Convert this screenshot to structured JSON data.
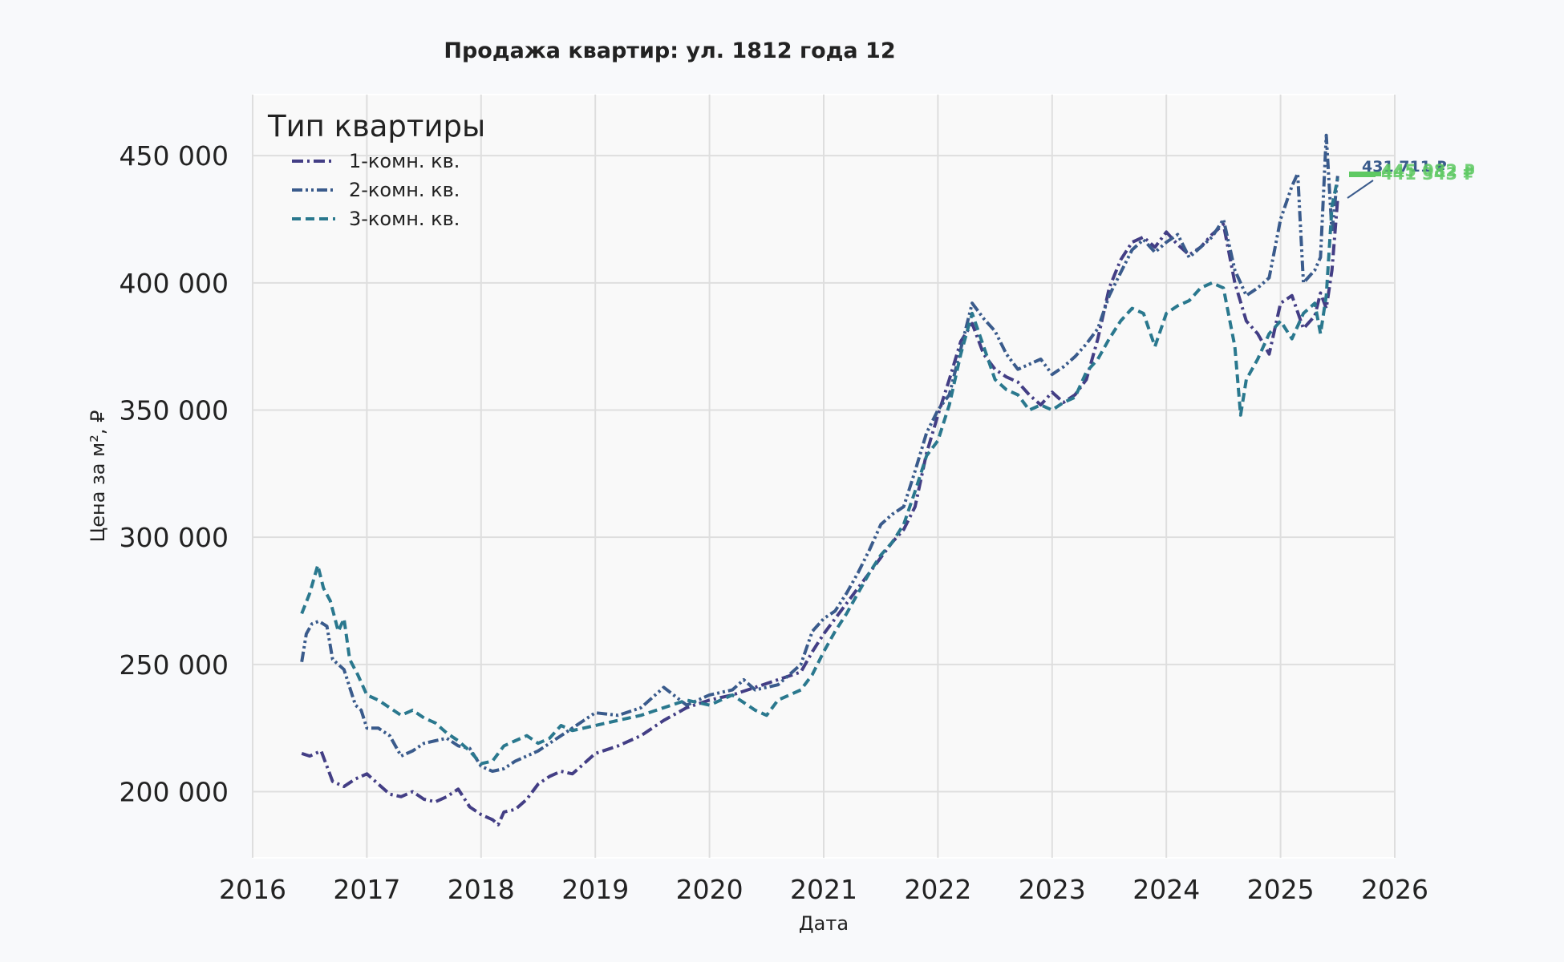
{
  "colors": {
    "background": "#f8f9fb",
    "plot_background": "#f9f9f9",
    "grid": "#dedede",
    "text": "#222222",
    "annotation_green": "#5ec962"
  },
  "chart_data": {
    "type": "line",
    "title": "Продажа квартир: ул. 1812 года 12",
    "xlabel": "Дата",
    "ylabel": "Цена за м², ₽",
    "xlim": [
      2016.0,
      2026.0
    ],
    "ylim": [
      174000,
      474000
    ],
    "x_ticks": [
      2016,
      2017,
      2018,
      2019,
      2020,
      2021,
      2022,
      2023,
      2024,
      2025,
      2026
    ],
    "y_ticks": [
      200000,
      250000,
      300000,
      350000,
      400000,
      450000
    ],
    "x_tick_labels": [
      "2016",
      "2017",
      "2018",
      "2019",
      "2020",
      "2021",
      "2022",
      "2023",
      "2024",
      "2025",
      "2026"
    ],
    "y_tick_labels": [
      "200 000",
      "250 000",
      "300 000",
      "350 000",
      "400 000",
      "450 000"
    ],
    "grid": true,
    "legend": {
      "title": "Тип квартиры",
      "placement": "top-left",
      "entries": [
        "1-комн. кв.",
        "2-комн. кв.",
        "3-комн. кв."
      ]
    },
    "series": [
      {
        "name": "1-комн. кв.",
        "color": "#433e85",
        "dash": "dashdot",
        "x": [
          2016.43,
          2016.5,
          2016.6,
          2016.7,
          2016.8,
          2016.9,
          2017.0,
          2017.1,
          2017.2,
          2017.3,
          2017.4,
          2017.5,
          2017.6,
          2017.7,
          2017.8,
          2017.9,
          2018.0,
          2018.1,
          2018.15,
          2018.2,
          2018.3,
          2018.4,
          2018.5,
          2018.6,
          2018.7,
          2018.8,
          2018.9,
          2019.0,
          2019.2,
          2019.4,
          2019.6,
          2019.8,
          2020.0,
          2020.2,
          2020.4,
          2020.6,
          2020.8,
          2020.9,
          2021.0,
          2021.1,
          2021.2,
          2021.3,
          2021.4,
          2021.5,
          2021.6,
          2021.7,
          2021.8,
          2021.9,
          2022.0,
          2022.1,
          2022.2,
          2022.3,
          2022.4,
          2022.5,
          2022.6,
          2022.7,
          2022.8,
          2022.9,
          2023.0,
          2023.1,
          2023.2,
          2023.3,
          2023.4,
          2023.5,
          2023.6,
          2023.7,
          2023.8,
          2023.9,
          2024.0,
          2024.1,
          2024.2,
          2024.3,
          2024.4,
          2024.5,
          2024.6,
          2024.7,
          2024.8,
          2024.9,
          2025.0,
          2025.1,
          2025.2,
          2025.3,
          2025.35,
          2025.4,
          2025.45,
          2025.5
        ],
        "values": [
          215000,
          214000,
          216000,
          204000,
          202000,
          205000,
          207000,
          203000,
          199000,
          198000,
          200000,
          197000,
          196000,
          198000,
          201000,
          194000,
          191000,
          189000,
          187000,
          192000,
          193000,
          197000,
          203000,
          206000,
          208000,
          207000,
          211000,
          215000,
          218000,
          222000,
          228000,
          233000,
          236000,
          238000,
          241000,
          244000,
          247000,
          255000,
          262000,
          268000,
          274000,
          280000,
          286000,
          292000,
          298000,
          303000,
          312000,
          333000,
          348000,
          362000,
          377000,
          384000,
          372000,
          366000,
          363000,
          361000,
          356000,
          352000,
          357000,
          353000,
          356000,
          362000,
          378000,
          398000,
          409000,
          416000,
          418000,
          414000,
          420000,
          415000,
          411000,
          414000,
          419000,
          423000,
          400000,
          385000,
          380000,
          372000,
          392000,
          395000,
          382000,
          387000,
          396000,
          390000,
          405000,
          433000
        ]
      },
      {
        "name": "2-комн. кв.",
        "color": "#3a5b8c",
        "dash": "dashdotdot",
        "x": [
          2016.43,
          2016.47,
          2016.52,
          2016.58,
          2016.65,
          2016.7,
          2016.75,
          2016.8,
          2016.85,
          2016.9,
          2016.95,
          2017.0,
          2017.1,
          2017.2,
          2017.3,
          2017.4,
          2017.5,
          2017.6,
          2017.7,
          2017.8,
          2017.9,
          2018.0,
          2018.1,
          2018.2,
          2018.3,
          2018.4,
          2018.5,
          2018.6,
          2018.7,
          2018.8,
          2018.9,
          2019.0,
          2019.2,
          2019.4,
          2019.6,
          2019.8,
          2020.0,
          2020.2,
          2020.3,
          2020.4,
          2020.6,
          2020.8,
          2020.9,
          2021.0,
          2021.1,
          2021.2,
          2021.3,
          2021.4,
          2021.5,
          2021.6,
          2021.7,
          2021.8,
          2021.9,
          2022.0,
          2022.1,
          2022.2,
          2022.3,
          2022.4,
          2022.5,
          2022.6,
          2022.7,
          2022.8,
          2022.9,
          2023.0,
          2023.1,
          2023.2,
          2023.3,
          2023.4,
          2023.5,
          2023.6,
          2023.7,
          2023.8,
          2023.9,
          2024.0,
          2024.1,
          2024.2,
          2024.3,
          2024.4,
          2024.5,
          2024.6,
          2024.7,
          2024.8,
          2024.9,
          2025.0,
          2025.1,
          2025.15,
          2025.2,
          2025.3,
          2025.35,
          2025.4,
          2025.45,
          2025.5
        ],
        "values": [
          251000,
          262000,
          266000,
          267000,
          265000,
          252000,
          250000,
          248000,
          241000,
          234000,
          232000,
          225000,
          225000,
          222000,
          214000,
          216000,
          219000,
          220000,
          221000,
          218000,
          217000,
          210000,
          208000,
          209000,
          212000,
          214000,
          216000,
          219000,
          222000,
          225000,
          228000,
          231000,
          230000,
          233000,
          241000,
          234000,
          238000,
          240000,
          244000,
          240000,
          242000,
          250000,
          263000,
          268000,
          271000,
          278000,
          286000,
          295000,
          305000,
          309000,
          312000,
          326000,
          341000,
          350000,
          356000,
          374000,
          392000,
          386000,
          381000,
          372000,
          366000,
          368000,
          370000,
          364000,
          367000,
          371000,
          376000,
          382000,
          395000,
          404000,
          413000,
          417000,
          412000,
          416000,
          419000,
          410000,
          414000,
          418000,
          425000,
          405000,
          395000,
          398000,
          402000,
          425000,
          438000,
          443000,
          400000,
          405000,
          410000,
          458000,
          420000,
          442000
        ]
      },
      {
        "name": "3-комн. кв.",
        "color": "#2a788e",
        "dash": "dashed",
        "x": [
          2016.43,
          2016.5,
          2016.57,
          2016.62,
          2016.68,
          2016.75,
          2016.8,
          2016.85,
          2016.92,
          2017.0,
          2017.1,
          2017.2,
          2017.3,
          2017.4,
          2017.5,
          2017.6,
          2017.7,
          2017.8,
          2017.9,
          2018.0,
          2018.1,
          2018.2,
          2018.3,
          2018.4,
          2018.5,
          2018.6,
          2018.7,
          2018.8,
          2018.9,
          2019.0,
          2019.2,
          2019.4,
          2019.6,
          2019.8,
          2020.0,
          2020.2,
          2020.4,
          2020.5,
          2020.6,
          2020.8,
          2020.9,
          2021.0,
          2021.1,
          2021.2,
          2021.3,
          2021.4,
          2021.5,
          2021.6,
          2021.7,
          2021.8,
          2021.9,
          2022.0,
          2022.1,
          2022.2,
          2022.3,
          2022.4,
          2022.5,
          2022.6,
          2022.7,
          2022.8,
          2022.9,
          2023.0,
          2023.1,
          2023.2,
          2023.3,
          2023.4,
          2023.5,
          2023.6,
          2023.7,
          2023.8,
          2023.9,
          2024.0,
          2024.1,
          2024.2,
          2024.3,
          2024.4,
          2024.5,
          2024.6,
          2024.65,
          2024.7,
          2024.8,
          2024.9,
          2025.0,
          2025.1,
          2025.2,
          2025.3,
          2025.35,
          2025.4,
          2025.45,
          2025.5
        ],
        "values": [
          270000,
          278000,
          289000,
          280000,
          275000,
          263000,
          268000,
          252000,
          246000,
          238000,
          236000,
          233000,
          230000,
          232000,
          229000,
          227000,
          223000,
          220000,
          216000,
          211000,
          212000,
          218000,
          220000,
          222000,
          219000,
          221000,
          226000,
          224000,
          225000,
          226000,
          228000,
          230000,
          233000,
          236000,
          234000,
          238000,
          232000,
          230000,
          236000,
          240000,
          246000,
          255000,
          263000,
          270000,
          278000,
          286000,
          293000,
          298000,
          305000,
          318000,
          332000,
          338000,
          352000,
          372000,
          388000,
          375000,
          362000,
          358000,
          356000,
          350000,
          352000,
          350000,
          353000,
          355000,
          365000,
          370000,
          378000,
          385000,
          390000,
          388000,
          375000,
          388000,
          391000,
          393000,
          398000,
          400000,
          398000,
          375000,
          348000,
          362000,
          370000,
          380000,
          385000,
          378000,
          388000,
          392000,
          380000,
          395000,
          430000,
          441000
        ]
      }
    ],
    "annotations": [
      {
        "text": "431 711 ₽",
        "color": "#3a5b8c"
      },
      {
        "text": "441 343 ₽",
        "color": "#5ec962"
      },
      {
        "text": "445 082 ₽",
        "color": "#5ec962"
      }
    ]
  }
}
